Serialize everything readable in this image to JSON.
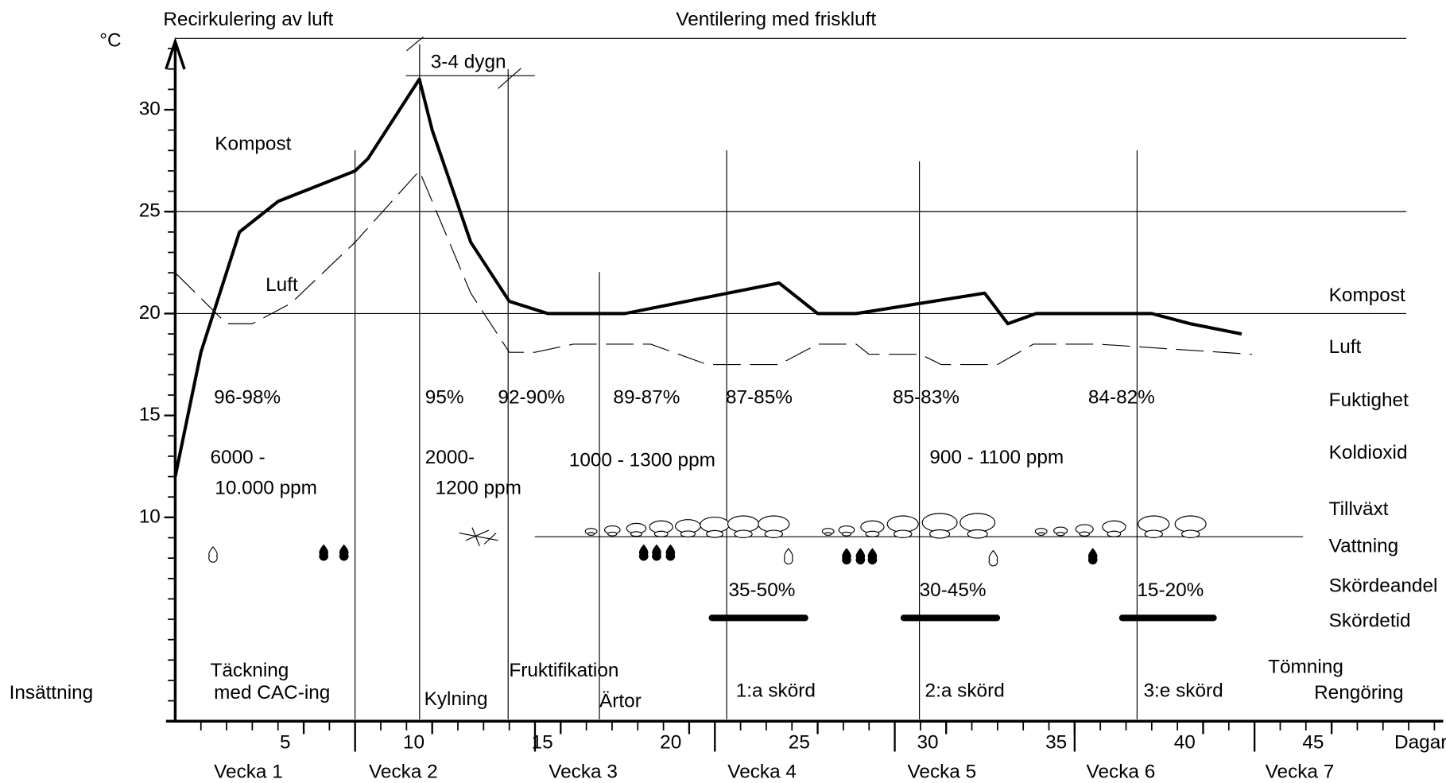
{
  "chart_data": {
    "type": "line",
    "y_label": "°C",
    "x_label": "Dagar",
    "xlim": [
      0,
      49.2
    ],
    "ylim": [
      0,
      33.5
    ],
    "xticks": [
      5,
      10,
      15,
      20,
      25,
      30,
      35,
      40,
      45
    ],
    "minor_xticks": [
      1,
      2,
      3,
      4,
      5,
      6,
      8,
      9,
      10,
      11,
      12,
      13,
      15,
      16,
      17,
      18,
      19,
      20,
      22,
      23,
      24,
      25,
      26,
      27,
      29,
      30,
      31,
      32,
      33,
      34,
      36,
      37,
      38,
      39,
      40,
      41,
      43,
      44,
      45,
      46,
      47,
      48,
      49
    ],
    "week_ticks": [
      7,
      14,
      21,
      28,
      35,
      42
    ],
    "yticks": [
      10,
      15,
      20,
      25,
      30
    ],
    "minor_yticks": [
      1,
      2,
      3,
      4,
      5,
      6,
      7,
      8,
      9,
      11,
      12,
      13,
      14,
      16,
      17,
      18,
      19,
      21,
      22,
      23,
      24,
      26,
      27,
      28,
      29,
      31,
      32,
      33
    ],
    "grid_lines": [
      20,
      25
    ],
    "series": [
      {
        "name": "Kompost",
        "color": "#000000",
        "style": "solid",
        "x": [
          0,
          1.0,
          2.5,
          4.0,
          7.0,
          7.5,
          9.5,
          10.0,
          11.5,
          13.0,
          14.5,
          17.5,
          23.5,
          25.0,
          26.5,
          31.5,
          32.4,
          33.5,
          38.0,
          39.5,
          41.5
        ],
        "values": [
          12.0,
          18.1,
          24.0,
          25.5,
          27.0,
          27.6,
          31.5,
          29.0,
          23.5,
          20.6,
          20.0,
          20.0,
          21.5,
          20.0,
          20.0,
          21.0,
          19.5,
          20.0,
          20.0,
          19.5,
          19.0
        ]
      },
      {
        "name": "Luft",
        "color": "#000000",
        "style": "dashed",
        "x": [
          0,
          2.0,
          3.0,
          4.5,
          7.0,
          9.5,
          11.5,
          13.0,
          14.0,
          15.5,
          18.5,
          20.7,
          23.5,
          25.0,
          26.5,
          27.0,
          29.0,
          29.8,
          32.0,
          33.4,
          35.9,
          41.9
        ],
        "values": [
          22.0,
          19.5,
          19.5,
          20.5,
          23.5,
          27.0,
          21.0,
          18.1,
          18.1,
          18.5,
          18.5,
          17.5,
          17.5,
          18.5,
          18.5,
          18.0,
          18.0,
          17.5,
          17.5,
          18.5,
          18.5,
          18.0
        ]
      }
    ],
    "row_labels": [
      "Fuktighet",
      "Koldioxid",
      "Tillväxt",
      "Vattning",
      "Skördeandel",
      "Skördetid"
    ],
    "annotations": [
      "Recirkulering av luft",
      "Ventilering med friskluft",
      "3-4 dygn",
      "Kompost",
      "Luft",
      "96-98%",
      "95%",
      "92-90%",
      "89-87%",
      "87-85%",
      "85-83%",
      "84-82%",
      "6000 -",
      "10.000 ppm",
      "2000-",
      "1200 ppm",
      "1000 - 1300 ppm",
      "900 - 1100 ppm",
      "35-50%",
      "30-45%",
      "15-20%",
      "Insättning",
      "Täckning",
      "med CAC-ing",
      "Kylning",
      "Fruktifikation",
      "Ärtor",
      "1:a skörd",
      "2:a skörd",
      "3:e skörd",
      "Tömning",
      "Rengöring"
    ],
    "weeks": [
      "Vecka 1",
      "Vecka 2",
      "Vecka 3",
      "Vecka 4",
      "Vecka 5",
      "Vecka 6",
      "Vecka 7"
    ]
  }
}
